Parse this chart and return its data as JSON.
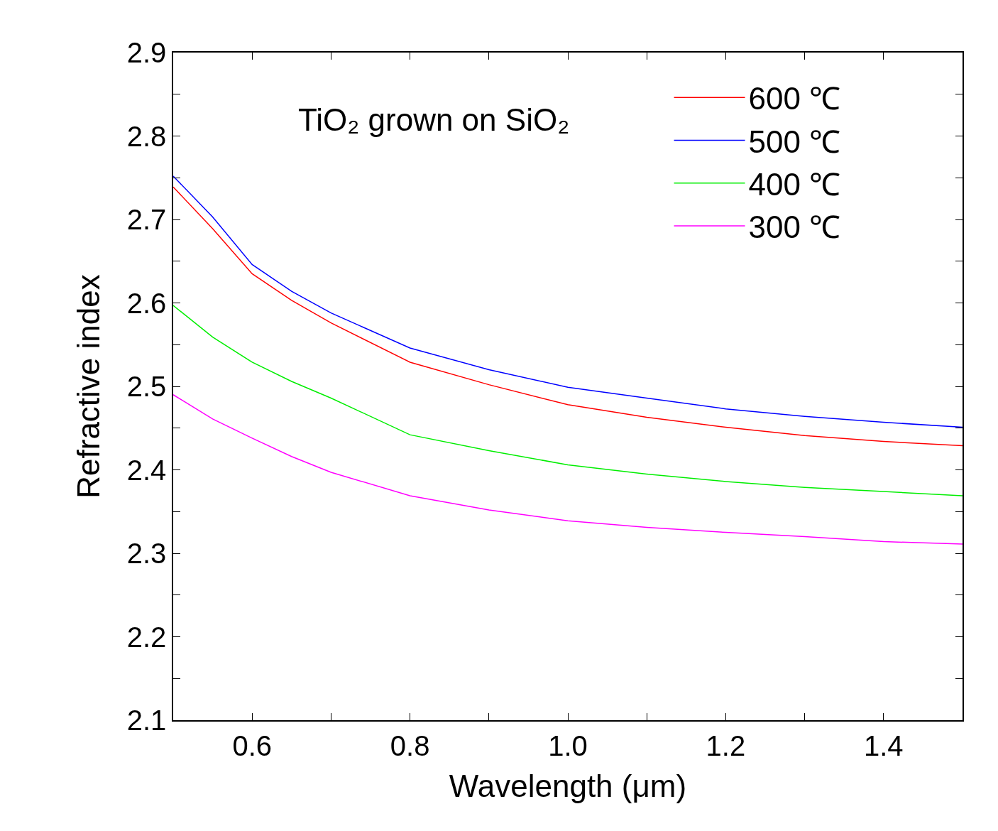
{
  "chart_data": {
    "type": "line",
    "xlabel": "Wavelength (μm)",
    "ylabel": "Refractive index",
    "annotations": [
      "TiO₂ grown on SiO₂"
    ],
    "x": [
      0.5,
      0.55,
      0.6,
      0.65,
      0.7,
      0.8,
      0.9,
      1.0,
      1.1,
      1.2,
      1.3,
      1.4,
      1.5
    ],
    "series": [
      {
        "name": "600 ℃",
        "color": "#ff0000",
        "values": [
          2.739,
          2.689,
          2.635,
          2.603,
          2.576,
          2.529,
          2.502,
          2.478,
          2.463,
          2.451,
          2.441,
          2.434,
          2.429
        ]
      },
      {
        "name": "500 ℃",
        "color": "#0000ff",
        "values": [
          2.752,
          2.703,
          2.646,
          2.614,
          2.588,
          2.546,
          2.52,
          2.499,
          2.486,
          2.473,
          2.464,
          2.457,
          2.451
        ]
      },
      {
        "name": "400 ℃",
        "color": "#00ee00",
        "values": [
          2.597,
          2.559,
          2.529,
          2.506,
          2.486,
          2.442,
          2.423,
          2.406,
          2.395,
          2.386,
          2.379,
          2.374,
          2.369
        ]
      },
      {
        "name": "300 ℃",
        "color": "#ff00ff",
        "values": [
          2.49,
          2.461,
          2.438,
          2.416,
          2.397,
          2.369,
          2.352,
          2.339,
          2.331,
          2.325,
          2.32,
          2.314,
          2.311
        ]
      }
    ],
    "xlim": [
      0.5,
      1.5
    ],
    "xticks": [
      {
        "value": 0.5,
        "label": null
      },
      0.6,
      {
        "value": 0.7,
        "label": null
      },
      0.8,
      {
        "value": 0.9,
        "label": null
      },
      {
        "value": 1,
        "label": "1.0"
      },
      {
        "value": 1.1,
        "label": null
      },
      1.2,
      {
        "value": 1.3,
        "label": null
      },
      1.4,
      {
        "value": 1.5,
        "label": null
      }
    ],
    "ylim": [
      2.1,
      2.9
    ],
    "yticks": [
      2.1,
      {
        "value": 2.15,
        "label": null
      },
      2.2,
      {
        "value": 2.25,
        "label": null
      },
      2.3,
      {
        "value": 2.35,
        "label": null
      },
      2.4,
      {
        "value": 2.45,
        "label": null
      },
      2.5,
      {
        "value": 2.55,
        "label": null
      },
      2.6,
      {
        "value": 2.65,
        "label": null
      },
      2.7,
      {
        "value": 2.75,
        "label": null
      },
      2.8,
      {
        "value": 2.85,
        "label": null
      },
      2.9
    ],
    "grid": false,
    "legend": "top right",
    "marker": "none",
    "line_style": "solid"
  }
}
